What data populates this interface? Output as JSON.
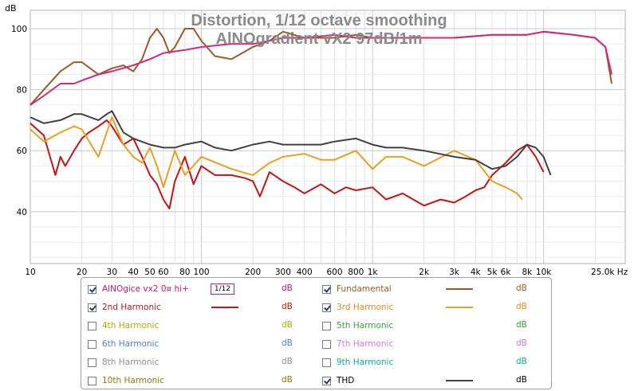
{
  "chart_data": {
    "type": "line",
    "title": "Distortion, 1/12 octave smoothing",
    "subtitle": "AlNOgradient vX2 97dB/1m",
    "ylabel": "dB",
    "xunit": "Hz",
    "xscale": "log",
    "xlim": [
      10,
      30000
    ],
    "ylim": [
      23,
      106
    ],
    "grid": true,
    "x_ticks": [
      {
        "v": 10,
        "t": "10"
      },
      {
        "v": 20,
        "t": "20"
      },
      {
        "v": 30,
        "t": "30"
      },
      {
        "v": 40,
        "t": "40"
      },
      {
        "v": 50,
        "t": "50"
      },
      {
        "v": 60,
        "t": "60"
      },
      {
        "v": 80,
        "t": "80"
      },
      {
        "v": 100,
        "t": "100"
      },
      {
        "v": 200,
        "t": "200"
      },
      {
        "v": 300,
        "t": "300"
      },
      {
        "v": 400,
        "t": "400"
      },
      {
        "v": 600,
        "t": "600"
      },
      {
        "v": 800,
        "t": "800"
      },
      {
        "v": 1000,
        "t": "1k"
      },
      {
        "v": 2000,
        "t": "2k"
      },
      {
        "v": 3000,
        "t": "3k"
      },
      {
        "v": 4000,
        "t": "4k"
      },
      {
        "v": 5000,
        "t": "5k"
      },
      {
        "v": 6000,
        "t": "6k"
      },
      {
        "v": 8000,
        "t": "8k"
      },
      {
        "v": 10000,
        "t": "10k"
      },
      {
        "v": 25000,
        "t": "25,0k Hz"
      }
    ],
    "y_ticks": [
      40,
      60,
      80,
      100
    ],
    "series": [
      {
        "name": "AlNOgice vx2 0¤ hi+",
        "color": "#d02a7a",
        "x": [
          10,
          12,
          15,
          18,
          20,
          25,
          30,
          40,
          50,
          60,
          80,
          100,
          150,
          200,
          250,
          300,
          400,
          600,
          800,
          1000,
          1500,
          2000,
          3000,
          5000,
          8000,
          10000,
          15000,
          20000,
          23000,
          25000
        ],
        "y": [
          75,
          78,
          82,
          82,
          83,
          85,
          86,
          88,
          90,
          92,
          93,
          94,
          95,
          95,
          96,
          97,
          97,
          98,
          97,
          97,
          97,
          97,
          97,
          98,
          98,
          99,
          98,
          97,
          94,
          85
        ]
      },
      {
        "name": "Fundamental",
        "color": "#9a5a2a",
        "x": [
          10,
          12,
          15,
          18,
          20,
          25,
          30,
          35,
          40,
          45,
          50,
          55,
          60,
          65,
          70,
          80,
          90,
          100,
          120,
          150,
          200,
          250,
          300,
          400,
          600,
          800,
          1000,
          1500,
          2000,
          3000,
          5000,
          8000,
          10000,
          15000,
          20000,
          23000,
          25000
        ],
        "y": [
          75,
          80,
          86,
          89,
          89,
          85,
          87,
          88,
          86,
          90,
          97,
          100,
          97,
          92,
          94,
          100,
          100,
          96,
          91,
          90,
          94,
          96,
          99,
          97,
          97,
          98,
          97,
          97,
          97,
          97,
          98,
          98,
          99,
          98,
          97,
          94,
          82
        ]
      },
      {
        "name": "2nd Harmonic",
        "color": "#c41414",
        "x": [
          10,
          12,
          14,
          15,
          16,
          18,
          20,
          22,
          25,
          28,
          30,
          35,
          40,
          45,
          50,
          55,
          60,
          65,
          70,
          80,
          90,
          100,
          120,
          150,
          180,
          200,
          220,
          250,
          300,
          350,
          400,
          500,
          600,
          700,
          800,
          1000,
          1200,
          1500,
          2000,
          2500,
          3000,
          3500,
          4000,
          4500,
          5000,
          6000,
          7000,
          8000,
          9000,
          10000
        ],
        "y": [
          69,
          65,
          52,
          58,
          55,
          60,
          64,
          66,
          68,
          70,
          68,
          62,
          64,
          58,
          52,
          49,
          44,
          41,
          50,
          58,
          49,
          55,
          52,
          52,
          51,
          50,
          45,
          53,
          50,
          48,
          46,
          49,
          46,
          48,
          47,
          48,
          44,
          46,
          42,
          44,
          43,
          45,
          47,
          48,
          52,
          56,
          60,
          62,
          58,
          53
        ]
      },
      {
        "name": "3rd Harmonic",
        "color": "#e8a020",
        "x": [
          10,
          12,
          15,
          18,
          20,
          25,
          30,
          35,
          40,
          45,
          50,
          55,
          60,
          70,
          80,
          100,
          150,
          200,
          250,
          300,
          400,
          500,
          600,
          800,
          1000,
          1200,
          1500,
          2000,
          3000,
          4000,
          5000,
          6000,
          7000,
          7500
        ],
        "y": [
          67,
          63,
          66,
          68,
          67,
          58,
          71,
          62,
          58,
          56,
          61,
          55,
          48,
          60,
          52,
          58,
          54,
          52,
          56,
          58,
          59,
          57,
          57,
          60,
          54,
          58,
          58,
          55,
          60,
          57,
          50,
          48,
          46,
          44
        ]
      },
      {
        "name": "THD",
        "color": "#404040",
        "x": [
          10,
          12,
          15,
          18,
          20,
          25,
          28,
          30,
          35,
          40,
          50,
          60,
          70,
          80,
          100,
          120,
          150,
          200,
          250,
          300,
          400,
          500,
          600,
          800,
          1000,
          1200,
          1500,
          2000,
          3000,
          4000,
          5000,
          6000,
          7000,
          8000,
          9000,
          10000,
          11000
        ],
        "y": [
          71,
          69,
          70,
          72,
          72,
          70,
          72,
          73,
          66,
          64,
          62,
          61,
          61,
          62,
          63,
          61,
          60,
          62,
          63,
          62,
          62,
          62,
          63,
          64,
          62,
          61,
          61,
          60,
          58,
          57,
          54,
          55,
          58,
          62,
          61,
          58,
          52
        ]
      }
    ]
  },
  "legend": [
    {
      "label": "AlNOgice vx2 0¤ hi+",
      "checked": true,
      "color": "#d02a7a",
      "text_color": "#c01870",
      "unit": "dB",
      "unit_color": "#c01870",
      "smoothing": "1/12"
    },
    {
      "label": "Fundamental",
      "checked": true,
      "color": "#9a5a2a",
      "text_color": "#9a5a2a",
      "unit": "dB",
      "unit_color": "#9a5a2a"
    },
    {
      "label": "2nd Harmonic",
      "checked": true,
      "color": "#c41414",
      "text_color": "#c41414",
      "unit": "dB",
      "unit_color": "#c41414"
    },
    {
      "label": "3rd Harmonic",
      "checked": true,
      "color": "#e8a020",
      "text_color": "#e08a10",
      "unit": "dB",
      "unit_color": "#e08a10"
    },
    {
      "label": "4th Harmonic",
      "checked": false,
      "color": "#b0b818",
      "text_color": "#a8b000",
      "unit": "dB",
      "unit_color": "#a8b000"
    },
    {
      "label": "5th Harmonic",
      "checked": false,
      "color": "#40b040",
      "text_color": "#3aa03a",
      "unit": "dB",
      "unit_color": "#3aa03a"
    },
    {
      "label": "6th Harmonic",
      "checked": false,
      "color": "#4a80d0",
      "text_color": "#4a80d0",
      "unit": "dB",
      "unit_color": "#4a80d0"
    },
    {
      "label": "7th Harmonic",
      "checked": false,
      "color": "#e070e0",
      "text_color": "#e070e0",
      "unit": "dB",
      "unit_color": "#e070e0"
    },
    {
      "label": "8th Harmonic",
      "checked": false,
      "color": "#909090",
      "text_color": "#909090",
      "unit": "dB",
      "unit_color": "#909090"
    },
    {
      "label": "9th Harmonic",
      "checked": false,
      "color": "#10b0b0",
      "text_color": "#10a8a8",
      "unit": "dB",
      "unit_color": "#10a8a8"
    },
    {
      "label": "10th Harmonic",
      "checked": false,
      "color": "#a09000",
      "text_color": "#8a7a00",
      "unit": "dB",
      "unit_color": "#8a7a00"
    },
    {
      "label": "THD",
      "checked": true,
      "color": "#404040",
      "text_color": "#000000",
      "unit": "dB",
      "unit_color": "#000000"
    }
  ]
}
